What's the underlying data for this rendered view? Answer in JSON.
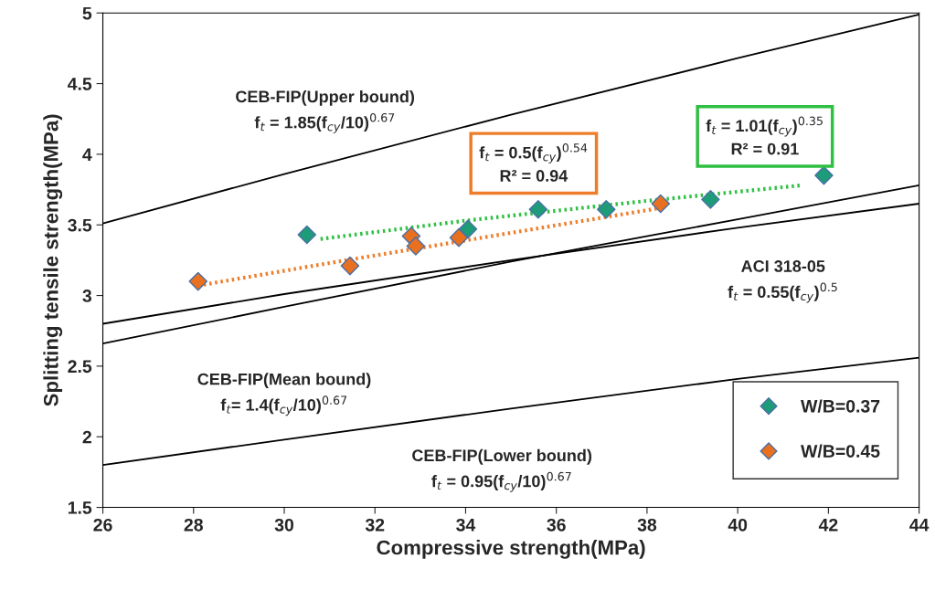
{
  "chart_data": {
    "type": "scatter",
    "xlabel": "Compressive strength(MPa)",
    "ylabel": "Splitting tensile strength(MPa)",
    "xlim": [
      26,
      44
    ],
    "xticks": [
      26,
      28,
      30,
      32,
      34,
      36,
      38,
      40,
      42,
      44
    ],
    "ylim": [
      1.5,
      5
    ],
    "yticks": [
      1.5,
      2,
      2.5,
      3,
      3.5,
      4,
      4.5,
      5
    ],
    "grid": false,
    "legend": "bottom right",
    "marker": "diamond",
    "series": [
      {
        "type": "line",
        "color": "#000000",
        "x": [
          26,
          30,
          35,
          40,
          44
        ],
        "values": [
          3.51,
          3.86,
          4.28,
          4.68,
          4.99
        ],
        "marker": "none",
        "line_style": "solid"
      },
      {
        "type": "line",
        "color": "#000000",
        "x": [
          26,
          30,
          35,
          40,
          44
        ],
        "values": [
          2.66,
          2.92,
          3.24,
          3.54,
          3.78
        ],
        "marker": "none",
        "line_style": "solid"
      },
      {
        "type": "line",
        "color": "#000000",
        "x": [
          26,
          30,
          35,
          40,
          44
        ],
        "values": [
          2.8,
          3.01,
          3.25,
          3.48,
          3.65
        ],
        "marker": "none",
        "line_style": "solid"
      },
      {
        "type": "line",
        "color": "#000000",
        "x": [
          26,
          30,
          35,
          40,
          44
        ],
        "values": [
          1.8,
          1.98,
          2.2,
          2.41,
          2.56
        ],
        "marker": "none",
        "line_style": "solid"
      },
      {
        "type": "line",
        "color": "#2fc043",
        "x": [
          30.8,
          34,
          38,
          41.4
        ],
        "values": [
          3.4,
          3.53,
          3.67,
          3.78
        ],
        "marker": "none",
        "line_style": "dotted"
      },
      {
        "type": "line",
        "color": "#ee7d2a",
        "x": [
          28.1,
          31,
          34,
          38.3
        ],
        "values": [
          3.07,
          3.23,
          3.39,
          3.62
        ],
        "marker": "none",
        "line_style": "dotted"
      },
      {
        "name": "W/B=0.37",
        "color": "#1e9b78",
        "x": [
          30.5,
          34.05,
          35.6,
          37.1,
          39.4,
          41.9
        ],
        "values": [
          3.43,
          3.47,
          3.61,
          3.61,
          3.68,
          3.85
        ]
      },
      {
        "name": "W/B=0.45",
        "color": "#e8701e",
        "x": [
          28.1,
          31.45,
          32.8,
          32.9,
          33.85,
          38.3
        ],
        "values": [
          3.1,
          3.21,
          3.42,
          3.35,
          3.41,
          3.65
        ]
      }
    ],
    "annotations": [
      "CEB-FIP(Upper bound)\nf$_{t}$ = 1.85(f$_{cy}$/10)$^{0.67}$",
      "f$_{t}$ = 0.5(f$_{cy}$)$^{0.54}$\nR² = 0.94",
      "f$_{t}$ = 1.01(f$_{cy}$)$^{0.35}$\nR² = 0.91",
      "ACI 318-05\nf$_{t}$ = 0.55(f$_{cy}$)$^{0.5}$",
      "CEB-FIP(Mean bound)\nf$_{t}$= 1.4(f$_{cy}$/10)$^{0.67}$",
      "CEB-FIP(Lower bound)\nf$_{t}$ = 0.95(f$_{cy}$/10)$^{0.67}$"
    ]
  }
}
